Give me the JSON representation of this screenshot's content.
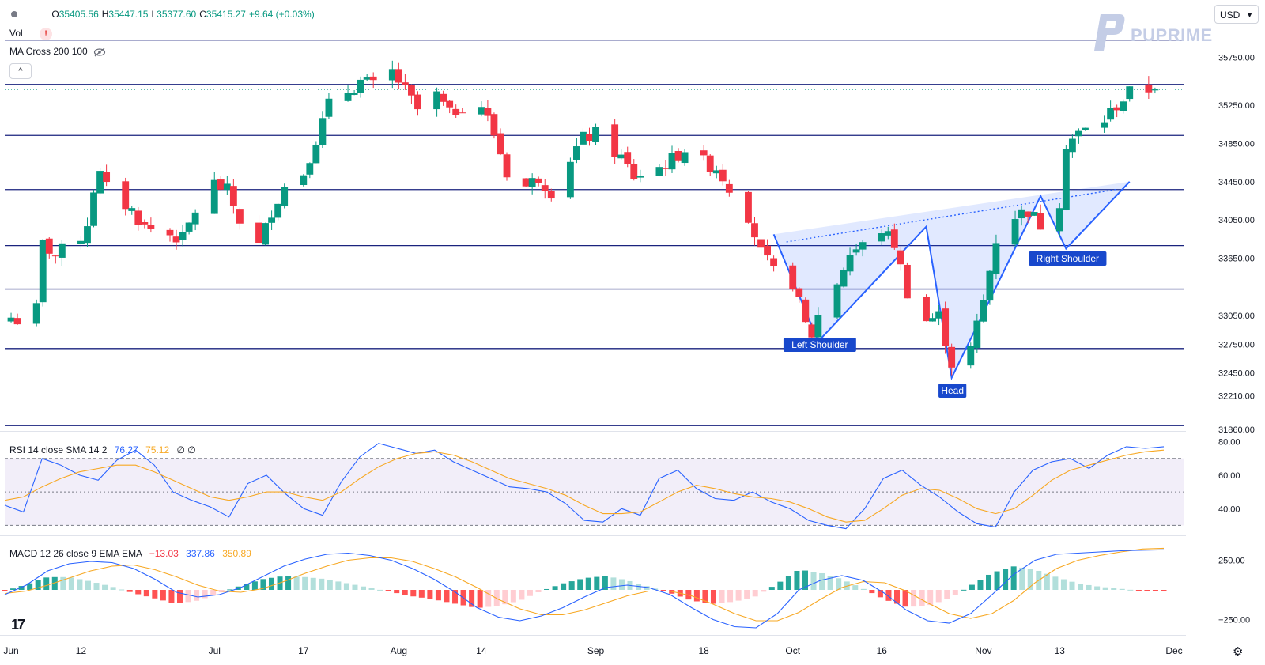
{
  "header": {
    "ohlc": [
      {
        "k": "O",
        "v": "35405.56"
      },
      {
        "k": "H",
        "v": "35447.15"
      },
      {
        "k": "L",
        "v": "35377.60"
      },
      {
        "k": "C",
        "v": "35415.27"
      },
      {
        "k": "",
        "v": "+9.64 (+0.03%)"
      }
    ],
    "vol_label": "Vol",
    "vol_badge": "!",
    "ma_label": "MA Cross 200 100",
    "collapse_glyph": "^",
    "currency": "USD",
    "watermark": "PUPRIME"
  },
  "rsi_legend": {
    "label": "RSI 14 close SMA 14 2",
    "rsi": "76.27",
    "sma": "75.12",
    "extra": "∅ ∅"
  },
  "macd_legend": {
    "label": "MACD 12 26 close 9 EMA EMA",
    "hist": "−13.03",
    "macd": "337.86",
    "signal": "350.89"
  },
  "colors": {
    "up": "#089981",
    "down": "#f23645",
    "level": "#1a237e",
    "pattern": "#2962ff",
    "rsi_line": "#2962ff",
    "rsi_sma": "#f7a823",
    "macd_line": "#2962ff",
    "signal_line": "#f7a823",
    "hist_up_strong": "#26a69a",
    "hist_up_weak": "#b2dfdb",
    "hist_down_strong": "#ff5252",
    "hist_down_weak": "#ffcdd2",
    "rsi_band": "#7e57c2"
  },
  "chart_data": [
    {
      "type": "candlestick",
      "title": "",
      "price_scale": {
        "ticks": [
          "35750.00",
          "35250.00",
          "34850.00",
          "34450.00",
          "34050.00",
          "33650.00",
          "33050.00",
          "32750.00",
          "32450.00",
          "32210.00",
          "31860.00"
        ],
        "ylim": [
          31860,
          36020
        ]
      },
      "x_ticks": [
        "Jun",
        "12",
        "Jul",
        "17",
        "Aug",
        "14",
        "Sep",
        "18",
        "Oct",
        "16",
        "Nov",
        "13",
        "Dec"
      ],
      "levels": [
        "35930.91",
        "35467.47",
        "34934.71",
        "34368.05",
        "33781.77",
        "33327.51",
        "32704.97",
        "31899.06"
      ],
      "last_price": "35415.27",
      "close_path": [
        [
          "2023-06-01",
          33030
        ],
        [
          "2023-06-02",
          33000
        ],
        [
          "2023-06-05",
          33120
        ],
        [
          "2023-06-06",
          33800
        ],
        [
          "2023-06-08",
          33680
        ],
        [
          "2023-06-12",
          33880
        ],
        [
          "2023-06-13",
          34020
        ],
        [
          "2023-06-14",
          34380
        ],
        [
          "2023-06-15",
          34520
        ],
        [
          "2023-06-16",
          34380
        ],
        [
          "2023-06-20",
          34150
        ],
        [
          "2023-06-22",
          33980
        ],
        [
          "2023-06-26",
          33900
        ],
        [
          "2023-06-28",
          33850
        ],
        [
          "2023-06-30",
          34150
        ],
        [
          "2023-07-03",
          34430
        ],
        [
          "2023-07-05",
          34350
        ],
        [
          "2023-07-07",
          34050
        ],
        [
          "2023-07-10",
          33780
        ],
        [
          "2023-07-12",
          34150
        ],
        [
          "2023-07-14",
          34400
        ],
        [
          "2023-07-17",
          34550
        ],
        [
          "2023-07-19",
          34900
        ],
        [
          "2023-07-21",
          35250
        ],
        [
          "2023-07-24",
          35400
        ],
        [
          "2023-07-26",
          35500
        ],
        [
          "2023-07-28",
          35450
        ],
        [
          "2023-07-31",
          35600
        ],
        [
          "2023-08-02",
          35400
        ],
        [
          "2023-08-04",
          35200
        ],
        [
          "2023-08-07",
          35350
        ],
        [
          "2023-08-09",
          35150
        ],
        [
          "2023-08-11",
          35250
        ],
        [
          "2023-08-14",
          35250
        ],
        [
          "2023-08-16",
          34950
        ],
        [
          "2023-08-18",
          34550
        ],
        [
          "2023-08-21",
          34400
        ],
        [
          "2023-08-23",
          34500
        ],
        [
          "2023-08-25",
          34350
        ],
        [
          "2023-08-28",
          34700
        ],
        [
          "2023-08-30",
          34900
        ],
        [
          "2023-09-01",
          34950
        ],
        [
          "2023-09-05",
          34700
        ],
        [
          "2023-09-07",
          34500
        ],
        [
          "2023-09-11",
          34600
        ],
        [
          "2023-09-13",
          34680
        ],
        [
          "2023-09-15",
          34800
        ],
        [
          "2023-09-18",
          34650
        ],
        [
          "2023-09-20",
          34600
        ],
        [
          "2023-09-22",
          34400
        ],
        [
          "2023-09-25",
          34100
        ],
        [
          "2023-09-27",
          33700
        ],
        [
          "2023-09-29",
          33500
        ],
        [
          "2023-10-02",
          33400
        ],
        [
          "2023-10-04",
          32950
        ],
        [
          "2023-10-05",
          32850
        ],
        [
          "2023-10-06",
          33050
        ],
        [
          "2023-10-09",
          33400
        ],
        [
          "2023-10-11",
          33700
        ],
        [
          "2023-10-13",
          33780
        ],
        [
          "2023-10-16",
          33950
        ],
        [
          "2023-10-18",
          33800
        ],
        [
          "2023-10-20",
          33300
        ],
        [
          "2023-10-23",
          33000
        ],
        [
          "2023-10-25",
          33050
        ],
        [
          "2023-10-27",
          32550
        ],
        [
          "2023-10-30",
          32700
        ],
        [
          "2023-11-01",
          33200
        ],
        [
          "2023-11-03",
          33850
        ],
        [
          "2023-11-06",
          34100
        ],
        [
          "2023-11-08",
          34150
        ],
        [
          "2023-11-10",
          34000
        ],
        [
          "2023-11-13",
          34250
        ],
        [
          "2023-11-14",
          34850
        ],
        [
          "2023-11-16",
          34950
        ],
        [
          "2023-11-20",
          35100
        ],
        [
          "2023-11-22",
          35250
        ],
        [
          "2023-11-24",
          35380
        ],
        [
          "2023-11-27",
          35415
        ]
      ]
    },
    {
      "type": "line",
      "title": "RSI 14 close SMA 14 2",
      "y_ticks": [
        "80.00",
        "60.00",
        "40.00"
      ],
      "ylim": [
        25,
        85
      ],
      "bands": [
        70,
        50,
        30
      ],
      "series": [
        {
          "name": "RSI",
          "values": [
            42,
            38,
            70,
            66,
            60,
            57,
            69,
            75,
            66,
            50,
            45,
            41,
            35,
            55,
            60,
            49,
            40,
            36,
            56,
            71,
            79,
            76,
            73,
            75,
            68,
            63,
            58,
            53,
            52,
            50,
            43,
            33,
            32,
            40,
            36,
            58,
            63,
            52,
            46,
            45,
            50,
            44,
            40,
            33,
            30,
            28,
            40,
            58,
            63,
            54,
            47,
            38,
            31,
            29,
            50,
            63,
            68,
            70,
            64,
            72,
            77,
            76,
            77
          ]
        },
        {
          "name": "SMA",
          "values": [
            45,
            47,
            53,
            58,
            62,
            64,
            66,
            66,
            62,
            57,
            52,
            47,
            45,
            47,
            50,
            50,
            47,
            45,
            50,
            58,
            65,
            70,
            73,
            74,
            72,
            68,
            63,
            58,
            55,
            52,
            48,
            42,
            37,
            37,
            38,
            44,
            50,
            54,
            52,
            49,
            47,
            46,
            44,
            40,
            35,
            32,
            33,
            40,
            48,
            52,
            51,
            46,
            40,
            37,
            40,
            48,
            57,
            63,
            66,
            69,
            72,
            74,
            75
          ]
        }
      ]
    },
    {
      "type": "line",
      "title": "MACD 12 26 close 9 EMA EMA",
      "y_ticks": [
        "250.00",
        "−250.00"
      ],
      "ylim": [
        -360,
        440
      ],
      "series": [
        {
          "name": "MACD",
          "values": [
            -40,
            40,
            160,
            220,
            240,
            230,
            180,
            90,
            -20,
            -60,
            -40,
            20,
            110,
            200,
            260,
            300,
            310,
            290,
            250,
            180,
            90,
            -20,
            -150,
            -230,
            -260,
            -220,
            -150,
            -60,
            20,
            40,
            20,
            -40,
            -150,
            -250,
            -310,
            -320,
            -200,
            0,
            80,
            120,
            80,
            -30,
            -170,
            -260,
            -280,
            -200,
            -40,
            130,
            250,
            300,
            310,
            320,
            330,
            335,
            338
          ]
        },
        {
          "name": "Signal",
          "values": [
            -30,
            -10,
            40,
            100,
            160,
            200,
            210,
            170,
            110,
            40,
            -10,
            -20,
            10,
            70,
            140,
            200,
            250,
            270,
            270,
            240,
            180,
            110,
            20,
            -80,
            -160,
            -210,
            -210,
            -170,
            -110,
            -50,
            -10,
            -10,
            -50,
            -120,
            -200,
            -260,
            -260,
            -190,
            -80,
            20,
            70,
            60,
            -10,
            -110,
            -200,
            -240,
            -200,
            -90,
            60,
            180,
            250,
            290,
            320,
            345,
            351
          ]
        }
      ]
    }
  ],
  "annotations": {
    "left_shoulder": "Left Shoulder",
    "head": "Head",
    "right_shoulder": "Right Shoulder"
  }
}
